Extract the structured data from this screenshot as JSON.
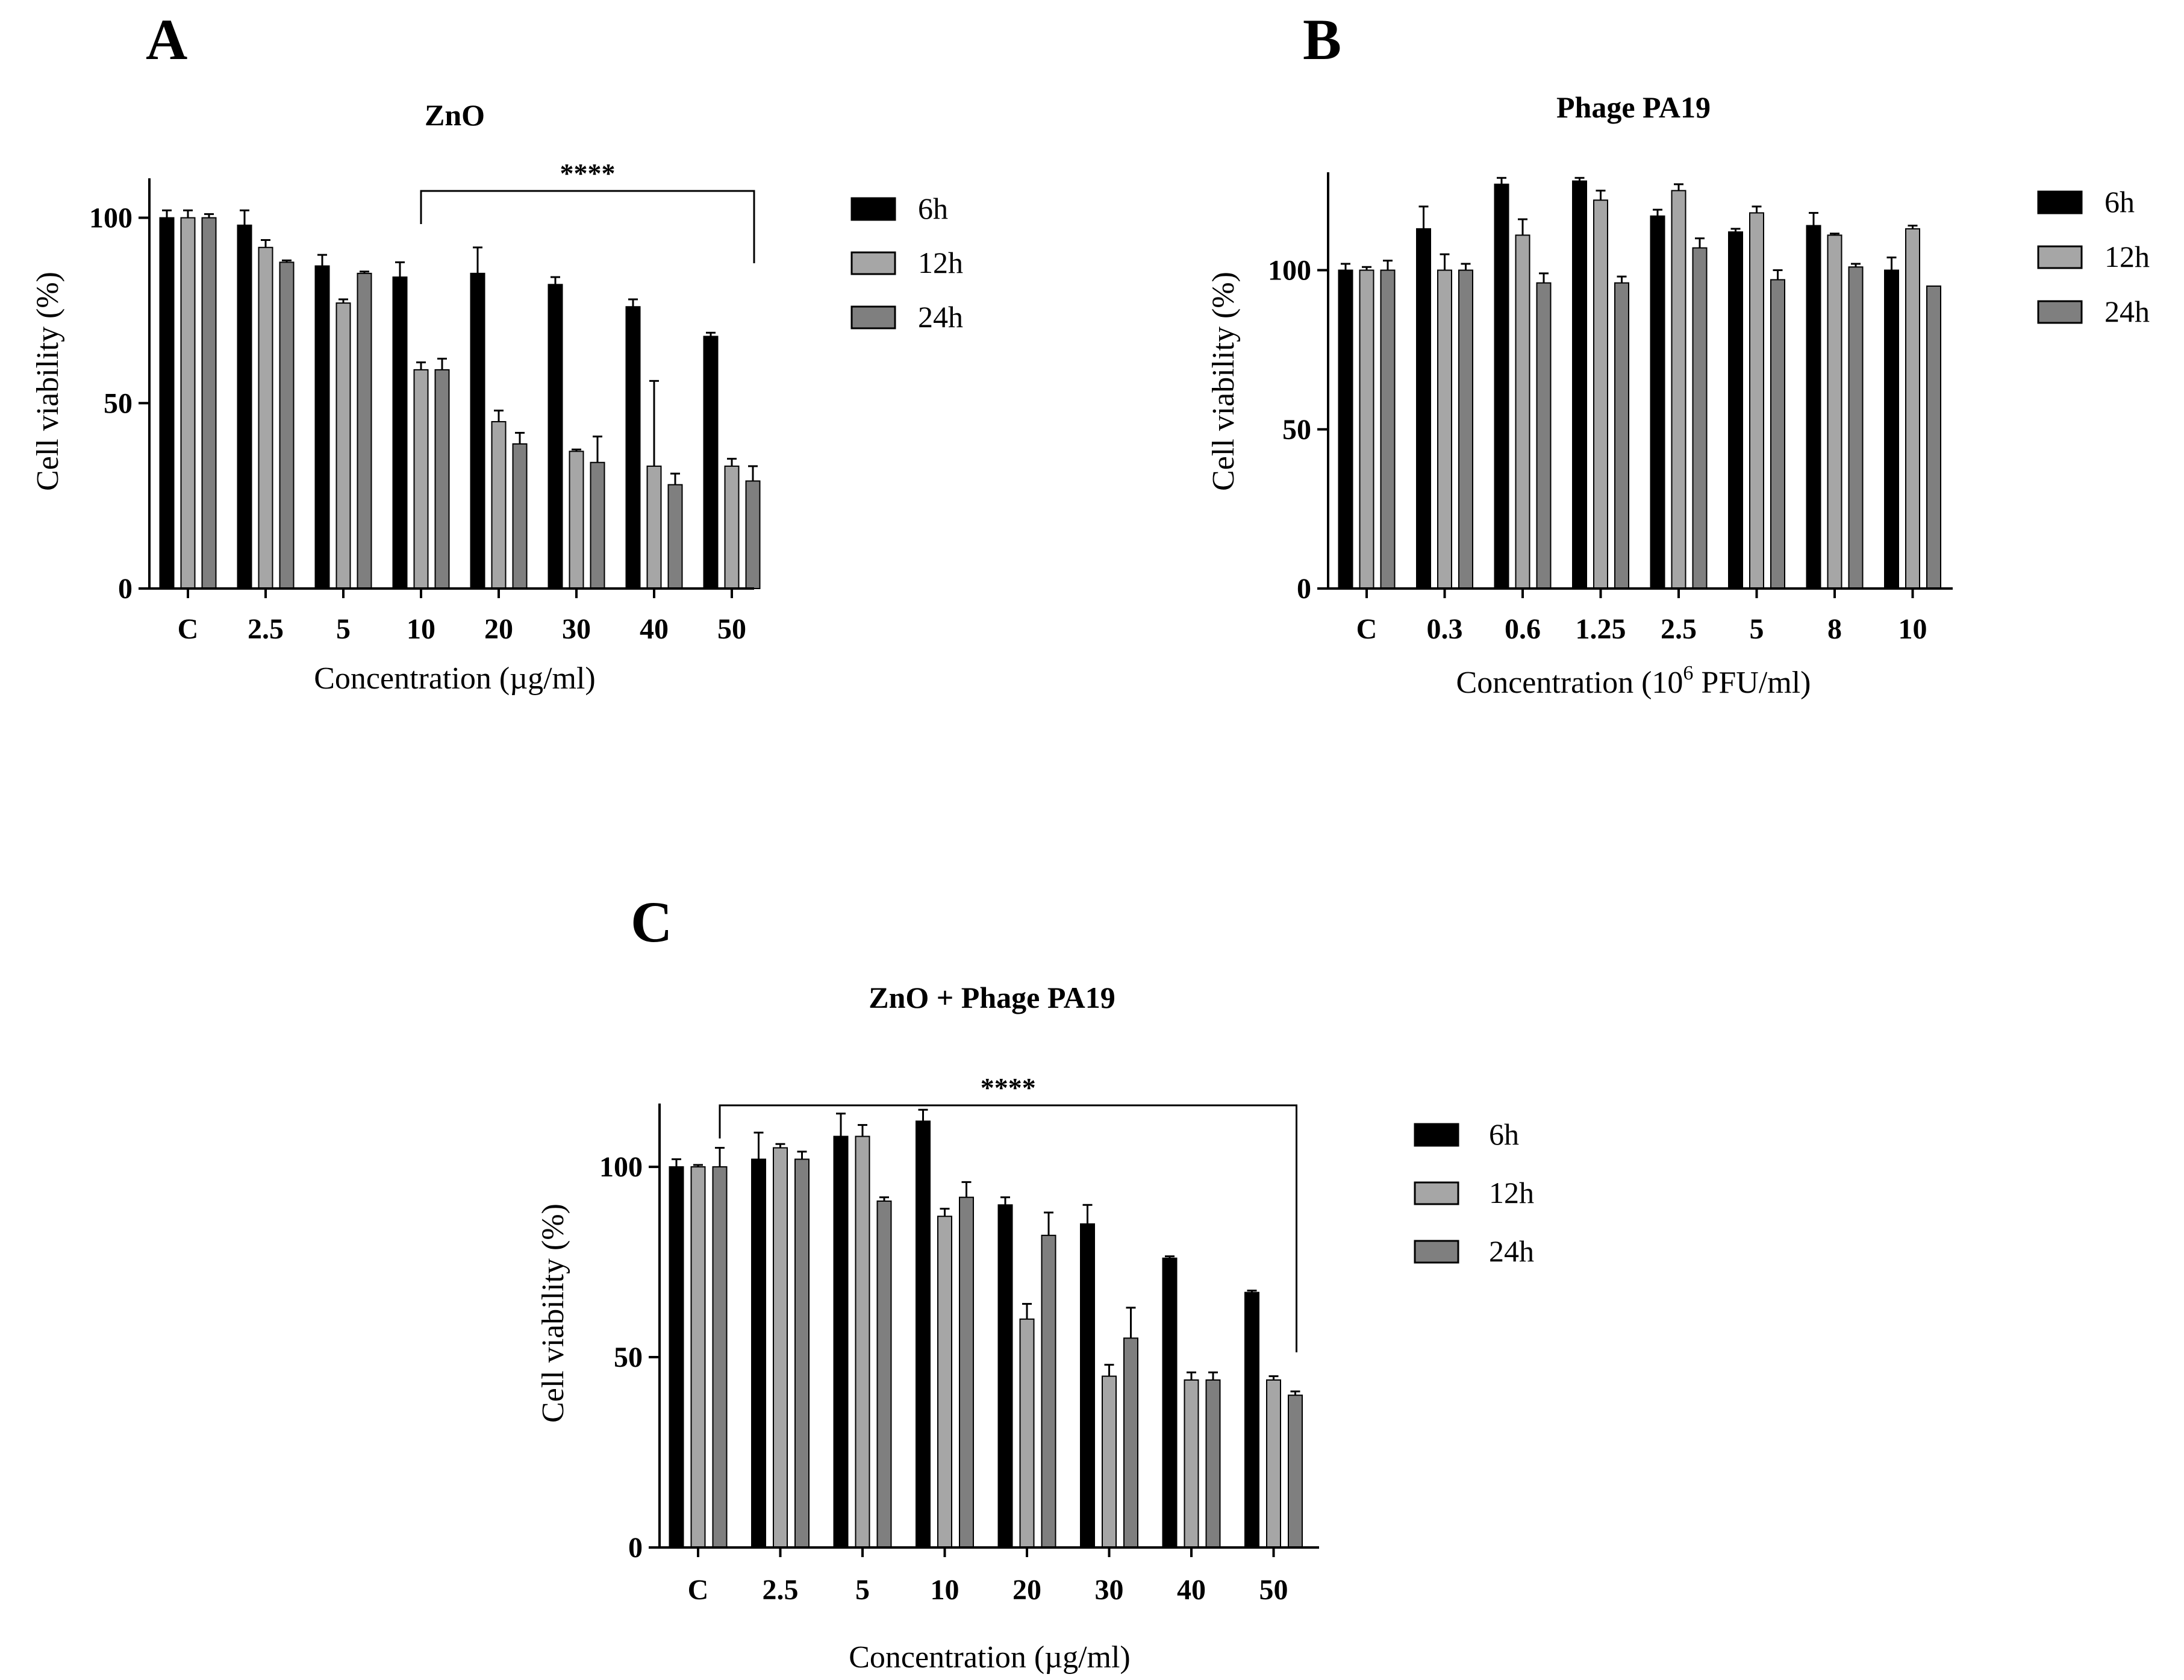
{
  "chart_data": [
    {
      "panel": "A",
      "type": "bar",
      "title": "ZnO",
      "xlabel": "Concentration (µg/ml)",
      "ylabel": "Cell viability (%)",
      "ylim": [
        0,
        110
      ],
      "yticks": [
        "0",
        "50",
        "100"
      ],
      "categories": [
        "C",
        "2.5",
        "5",
        "10",
        "20",
        "30",
        "40",
        "50"
      ],
      "series": [
        {
          "name": "6h",
          "color": "#000000",
          "values": [
            100,
            98,
            87,
            84,
            85,
            82,
            76,
            68
          ],
          "errors": [
            2,
            4,
            3,
            4,
            7,
            2,
            2,
            1
          ]
        },
        {
          "name": "12h",
          "color": "#a6a6a6",
          "values": [
            100,
            92,
            77,
            59,
            45,
            37,
            33,
            33
          ],
          "errors": [
            2,
            2,
            1,
            2,
            3,
            0.5,
            23,
            2
          ]
        },
        {
          "name": "24h",
          "color": "#7f7f7f",
          "values": [
            100,
            88,
            85,
            59,
            39,
            34,
            28,
            29
          ],
          "errors": [
            1,
            0.5,
            0.5,
            3,
            3,
            7,
            3,
            4
          ]
        }
      ],
      "significance": {
        "label": "****",
        "from": "10",
        "to": "50"
      }
    },
    {
      "panel": "B",
      "type": "bar",
      "title": "Phage PA19",
      "xlabel": "Concentration (10",
      "xlabel_sup": "6",
      "xlabel_end": " PFU/ml)",
      "ylabel": "Cell viability (%)",
      "ylim": [
        0,
        130
      ],
      "yticks": [
        "0",
        "50",
        "100"
      ],
      "categories": [
        "C",
        "0.3",
        "0.6",
        "1.25",
        "2.5",
        "5",
        "8",
        "10"
      ],
      "series": [
        {
          "name": "6h",
          "color": "#000000",
          "values": [
            100,
            113,
            127,
            128,
            117,
            112,
            114,
            100
          ],
          "errors": [
            2,
            7,
            2,
            1,
            2,
            1,
            4,
            4
          ]
        },
        {
          "name": "12h",
          "color": "#a6a6a6",
          "values": [
            100,
            100,
            111,
            122,
            125,
            118,
            111,
            113
          ],
          "errors": [
            1,
            5,
            5,
            3,
            2,
            2,
            0.5,
            1
          ]
        },
        {
          "name": "24h",
          "color": "#7f7f7f",
          "values": [
            100,
            100,
            96,
            96,
            107,
            97,
            101,
            95
          ],
          "errors": [
            3,
            2,
            3,
            2,
            3,
            3,
            1,
            0
          ]
        }
      ]
    },
    {
      "panel": "C",
      "type": "bar",
      "title": "ZnO + Phage PA19",
      "xlabel": "Concentration (µg/ml)",
      "ylabel": "Cell viability (%)",
      "ylim": [
        0,
        116
      ],
      "yticks": [
        "0",
        "50",
        "100"
      ],
      "categories": [
        "C",
        "2.5",
        "5",
        "10",
        "20",
        "30",
        "40",
        "50"
      ],
      "series": [
        {
          "name": "6h",
          "color": "#000000",
          "values": [
            100,
            102,
            108,
            112,
            90,
            85,
            76,
            67
          ],
          "errors": [
            2,
            7,
            6,
            3,
            2,
            5,
            0.5,
            0.5
          ]
        },
        {
          "name": "12h",
          "color": "#a6a6a6",
          "values": [
            100,
            105,
            108,
            87,
            60,
            45,
            44,
            44
          ],
          "errors": [
            0.5,
            1,
            3,
            2,
            4,
            3,
            2,
            1
          ]
        },
        {
          "name": "24h",
          "color": "#7f7f7f",
          "values": [
            100,
            102,
            91,
            92,
            82,
            55,
            44,
            40
          ],
          "errors": [
            5,
            2,
            1,
            4,
            6,
            8,
            2,
            1
          ]
        }
      ],
      "significance": {
        "label": "****",
        "from": "C",
        "to": "50"
      }
    }
  ]
}
